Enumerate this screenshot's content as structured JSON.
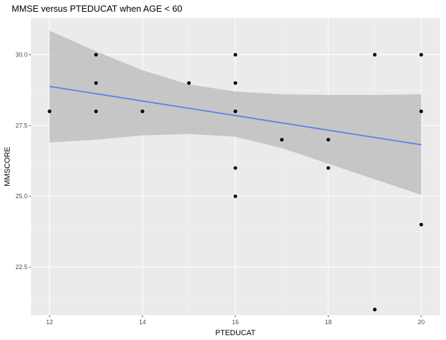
{
  "chart_data": {
    "type": "scatter",
    "title": "MMSE versus PTEDUCAT when AGE < 60",
    "xlabel": "PTEDUCAT",
    "ylabel": "MMSCORE",
    "xlim": [
      11.6,
      20.4
    ],
    "ylim": [
      20.8,
      31.3
    ],
    "x_ticks": [
      12,
      14,
      16,
      18,
      20
    ],
    "x_tick_labels": [
      "12",
      "14",
      "16",
      "18",
      "20"
    ],
    "y_ticks": [
      22.5,
      25.0,
      27.5,
      30.0
    ],
    "y_tick_labels": [
      "22.5",
      "25.0",
      "27.5",
      "30.0"
    ],
    "grid": true,
    "points": [
      {
        "x": 12,
        "y": 28
      },
      {
        "x": 13,
        "y": 30
      },
      {
        "x": 13,
        "y": 29
      },
      {
        "x": 13,
        "y": 28
      },
      {
        "x": 14,
        "y": 28
      },
      {
        "x": 15,
        "y": 29
      },
      {
        "x": 16,
        "y": 30
      },
      {
        "x": 16,
        "y": 29
      },
      {
        "x": 16,
        "y": 28
      },
      {
        "x": 16,
        "y": 26
      },
      {
        "x": 16,
        "y": 25
      },
      {
        "x": 17,
        "y": 27
      },
      {
        "x": 18,
        "y": 27
      },
      {
        "x": 18,
        "y": 26
      },
      {
        "x": 19,
        "y": 30
      },
      {
        "x": 19,
        "y": 21
      },
      {
        "x": 20,
        "y": 30
      },
      {
        "x": 20,
        "y": 28
      },
      {
        "x": 20,
        "y": 24
      }
    ],
    "fit_line": {
      "x": [
        12,
        20
      ],
      "y": [
        28.88,
        26.82
      ]
    },
    "confidence_band": {
      "x": [
        12,
        13,
        14,
        15,
        16,
        17,
        18,
        19,
        20
      ],
      "upper": [
        30.85,
        30.12,
        29.45,
        28.95,
        28.7,
        28.6,
        28.58,
        28.58,
        28.6
      ],
      "lower": [
        26.9,
        27.0,
        27.15,
        27.2,
        27.1,
        26.7,
        26.15,
        25.6,
        25.05
      ]
    },
    "colors": {
      "panel_background": "#ebebeb",
      "grid_major": "#ffffff",
      "grid_minor": "#f5f5f5",
      "band": "#b9b9b9",
      "line": "#5b7fe6",
      "point": "#000000"
    }
  }
}
